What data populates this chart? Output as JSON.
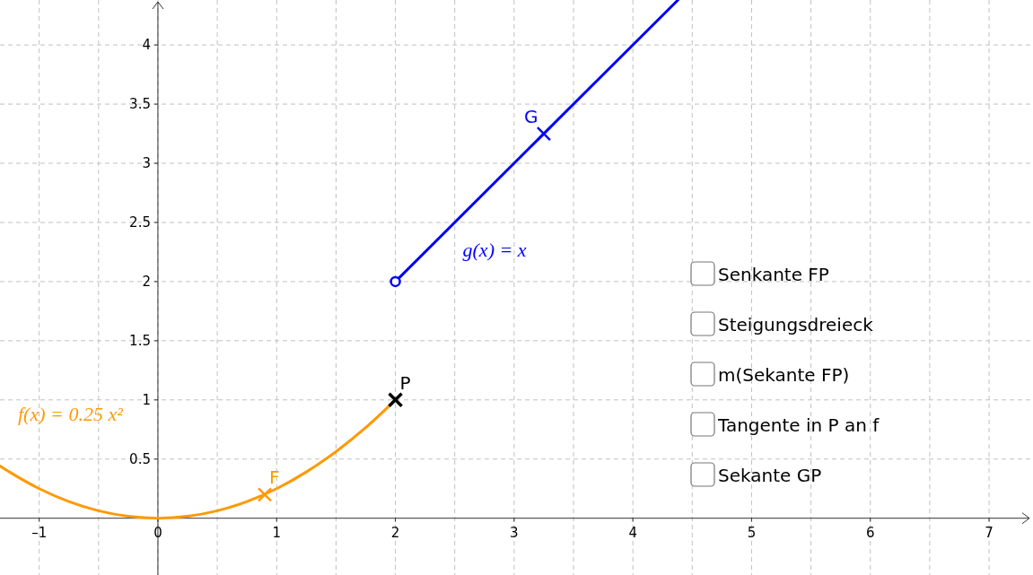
{
  "chart_data": {
    "type": "line",
    "xlim": [
      -1.33,
      7.37
    ],
    "ylim": [
      -0.48,
      4.38
    ],
    "xticks": [
      {
        "value": -1,
        "label": "–1"
      },
      {
        "value": -0.5,
        "label": null
      },
      0,
      {
        "value": 0.5,
        "label": null
      },
      1,
      {
        "value": 1.5,
        "label": null
      },
      2,
      {
        "value": 2.5,
        "label": null
      },
      3,
      {
        "value": 3.5,
        "label": null
      },
      4,
      {
        "value": 4.5,
        "label": null
      },
      5,
      {
        "value": 5.5,
        "label": null
      },
      6,
      {
        "value": 6.5,
        "label": null
      },
      7
    ],
    "yticks": [
      0.5,
      1,
      1.5,
      2,
      2.5,
      3,
      3.5,
      4
    ],
    "grid": true,
    "line_style": "solid",
    "series": [
      {
        "name": "f(x) = 0.25 x²",
        "color": "#ff9900",
        "x": [
          -1.33,
          -1.25,
          -1,
          -0.75,
          -0.5,
          -0.25,
          0,
          0.25,
          0.5,
          0.75,
          1,
          1.25,
          1.5,
          1.75,
          2
        ],
        "values": [
          0.442,
          0.391,
          0.25,
          0.141,
          0.063,
          0.016,
          0,
          0.016,
          0.063,
          0.141,
          0.25,
          0.391,
          0.563,
          0.766,
          1
        ]
      },
      {
        "name": "g(x) = x",
        "color": "#0000ff",
        "x": [
          2,
          4.38
        ],
        "values": [
          2,
          4.38
        ]
      },
      {
        "type": "scatter",
        "name": "P",
        "color": "#000000",
        "marker": "cross",
        "x": [
          2
        ],
        "values": [
          1
        ]
      },
      {
        "type": "scatter",
        "name": "F",
        "color": "#ff9900",
        "marker": "cross",
        "x": [
          0.9
        ],
        "values": [
          0.2
        ]
      },
      {
        "type": "scatter",
        "name": "G",
        "color": "#0000ff",
        "marker": "cross",
        "x": [
          3.25
        ],
        "values": [
          3.25
        ]
      },
      {
        "type": "scatter",
        "color": "#0000ff",
        "marker": "circle",
        "x": [
          2
        ],
        "values": [
          2
        ]
      }
    ],
    "annotations": [
      "Senkante FP",
      "Steigungsdreieck",
      "m(Sekante FP)",
      "Tangente in P an f",
      "Sekante GP"
    ]
  }
}
